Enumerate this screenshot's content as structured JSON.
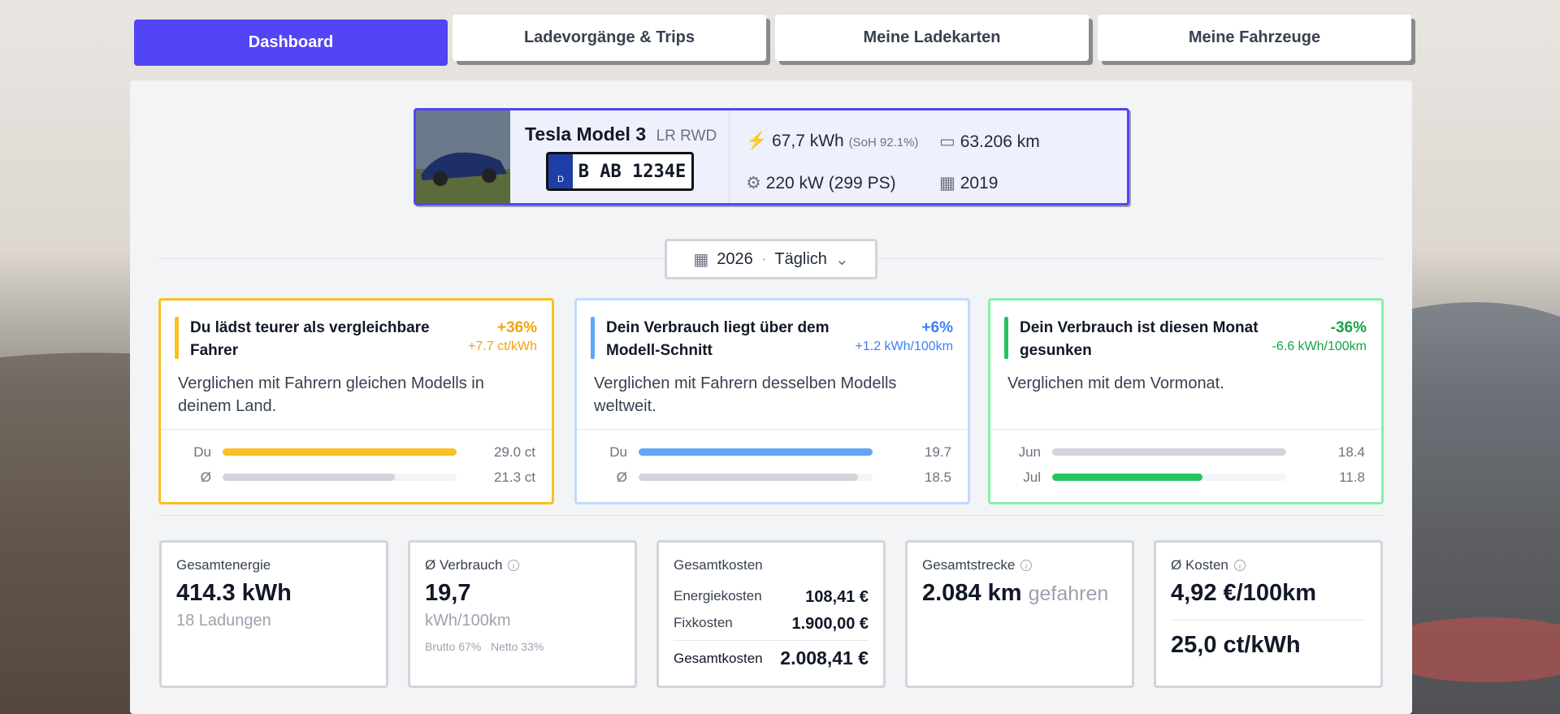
{
  "tabs": [
    "Dashboard",
    "Ladevorgänge & Trips",
    "Meine Ladekarten",
    "Meine Fahrzeuge"
  ],
  "vehicle": {
    "name": "Tesla Model 3",
    "variant": "LR RWD",
    "plate_country": "D",
    "plate": "B AB 1234E",
    "battery": "67,7 kWh",
    "soh": "(SoH 92.1%)",
    "power": "220 kW (299 PS)",
    "mileage": "63.206 km",
    "year": "2019"
  },
  "filter": {
    "year": "2026",
    "separator": "·",
    "period": "Täglich"
  },
  "insights": [
    {
      "title": "Du lädst teurer als vergleichbare Fahrer",
      "change": "+36%",
      "delta": "+7.7 ct/kWh",
      "description": "Verglichen mit Fahrern gleichen Modells in deinem Land.",
      "bars": [
        {
          "label": "Du",
          "value": 29.0,
          "value_label": "29.0 ct"
        },
        {
          "label": "Ø",
          "value": 21.3,
          "value_label": "21.3 ct"
        }
      ]
    },
    {
      "title": "Dein Verbrauch liegt über dem Modell-Schnitt",
      "change": "+6%",
      "delta": "+1.2 kWh/100km",
      "description": "Verglichen mit Fahrern desselben Modells weltweit.",
      "bars": [
        {
          "label": "Du",
          "value": 19.7
        },
        {
          "label": "Ø",
          "value": 18.5
        }
      ]
    },
    {
      "title": "Dein Verbrauch ist diesen Monat gesunken",
      "change": "-36%",
      "delta": "-6.6 kWh/100km",
      "description": "Verglichen mit dem Vormonat.",
      "bars": [
        {
          "label": "Jun",
          "value": 18.4
        },
        {
          "label": "Jul",
          "value": 11.8
        }
      ]
    }
  ],
  "stats": {
    "energy": {
      "label": "Gesamtenergie",
      "value": "414.3 kWh",
      "sub": "18 Ladungen"
    },
    "consumption": {
      "label": "Ø Verbrauch",
      "value": "19,7",
      "sub": "kWh/100km",
      "notes": [
        "Brutto 67%",
        "Netto 33%"
      ]
    },
    "costs": {
      "label": "Gesamtkosten",
      "rows": [
        {
          "label": "Energiekosten",
          "value": "108,41 €"
        },
        {
          "label": "Fixkosten",
          "value": "1.900,00 €"
        }
      ],
      "total": {
        "label": "Gesamtkosten",
        "value": "2.008,41 €"
      }
    },
    "distance": {
      "label": "Gesamtstrecke",
      "value": "2.084 km",
      "suffix": "gefahren"
    },
    "avg_cost": {
      "label": "Ø Kosten",
      "value": "4,92 €/100km",
      "value2": "25,0 ct/kWh"
    }
  }
}
